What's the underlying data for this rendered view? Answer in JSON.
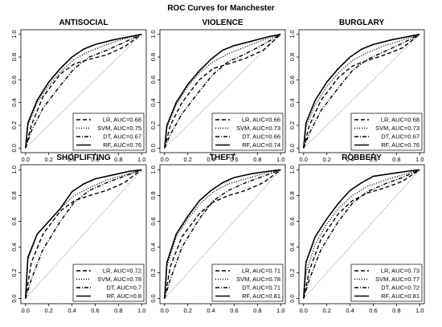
{
  "chart_data": {
    "type": "line",
    "title": "ROC Curves for Manchester",
    "xlim": [
      0,
      1
    ],
    "ylim": [
      0,
      1
    ],
    "x_ticks": [
      "0.0",
      "0.2",
      "0.4",
      "0.6",
      "0.8",
      "1.0"
    ],
    "y_ticks": [
      "0.0",
      "0.2",
      "0.4",
      "0.6",
      "0.8",
      "1.0"
    ],
    "grid": false,
    "reference_line": "dotted diagonal",
    "legend_position": "bottom-right",
    "series_styles": {
      "LR": "dashed",
      "SVM": "dotted",
      "DT": "dash-dot",
      "RF": "solid"
    },
    "panels": [
      {
        "title": "ANTISOCIAL",
        "series": [
          {
            "name": "LR",
            "auc_label": "LR, AUC=0.68",
            "x": [
              0,
              0.05,
              0.15,
              0.3,
              0.42,
              0.55,
              0.7,
              0.85,
              1.0
            ],
            "y": [
              0,
              0.2,
              0.45,
              0.65,
              0.74,
              0.78,
              0.82,
              0.89,
              1.0
            ]
          },
          {
            "name": "SVM",
            "auc_label": "SVM, AUC=0.75",
            "x": [
              0,
              0.02,
              0.1,
              0.2,
              0.3,
              0.42,
              0.55,
              0.7,
              0.85,
              1.0
            ],
            "y": [
              0,
              0.2,
              0.4,
              0.55,
              0.67,
              0.78,
              0.85,
              0.91,
              0.96,
              1.0
            ]
          },
          {
            "name": "DT",
            "auc_label": "DT, AUC=0.67",
            "x": [
              0,
              0.05,
              0.15,
              0.3,
              0.42,
              0.55,
              0.7,
              0.85,
              1.0
            ],
            "y": [
              0,
              0.15,
              0.35,
              0.55,
              0.7,
              0.8,
              0.86,
              0.93,
              1.0
            ]
          },
          {
            "name": "RF",
            "auc_label": "RF, AUC=0.76",
            "x": [
              0,
              0.02,
              0.1,
              0.2,
              0.3,
              0.4,
              0.5,
              0.6,
              0.75,
              0.9,
              1.0
            ],
            "y": [
              0,
              0.22,
              0.42,
              0.58,
              0.7,
              0.8,
              0.87,
              0.91,
              0.95,
              0.98,
              1.0
            ]
          }
        ]
      },
      {
        "title": "VIOLENCE",
        "series": [
          {
            "name": "LR",
            "auc_label": "LR, AUC=0.66",
            "x": [
              0,
              0.05,
              0.15,
              0.3,
              0.42,
              0.55,
              0.7,
              0.85,
              1.0
            ],
            "y": [
              0,
              0.2,
              0.4,
              0.6,
              0.7,
              0.74,
              0.79,
              0.86,
              1.0
            ]
          },
          {
            "name": "SVM",
            "auc_label": "SVM, AUC=0.73",
            "x": [
              0,
              0.02,
              0.1,
              0.2,
              0.3,
              0.42,
              0.55,
              0.7,
              0.85,
              1.0
            ],
            "y": [
              0,
              0.18,
              0.38,
              0.54,
              0.66,
              0.76,
              0.83,
              0.89,
              0.95,
              1.0
            ]
          },
          {
            "name": "DT",
            "auc_label": "DT, AUC=0.66",
            "x": [
              0,
              0.05,
              0.15,
              0.3,
              0.42,
              0.55,
              0.7,
              0.85,
              1.0
            ],
            "y": [
              0,
              0.12,
              0.3,
              0.5,
              0.65,
              0.76,
              0.83,
              0.91,
              1.0
            ]
          },
          {
            "name": "RF",
            "auc_label": "RF, AUC=0.74",
            "x": [
              0,
              0.02,
              0.1,
              0.2,
              0.3,
              0.4,
              0.5,
              0.6,
              0.75,
              0.9,
              1.0
            ],
            "y": [
              0,
              0.2,
              0.4,
              0.56,
              0.68,
              0.78,
              0.86,
              0.9,
              0.94,
              0.98,
              1.0
            ]
          }
        ]
      },
      {
        "title": "BURGLARY",
        "series": [
          {
            "name": "LR",
            "auc_label": "LR, AUC=0.68",
            "x": [
              0,
              0.05,
              0.15,
              0.3,
              0.42,
              0.55,
              0.7,
              0.85,
              1.0
            ],
            "y": [
              0,
              0.2,
              0.42,
              0.62,
              0.72,
              0.77,
              0.82,
              0.88,
              1.0
            ]
          },
          {
            "name": "SVM",
            "auc_label": "SVM, AUC=0.73",
            "x": [
              0,
              0.02,
              0.1,
              0.2,
              0.3,
              0.42,
              0.55,
              0.7,
              0.85,
              1.0
            ],
            "y": [
              0,
              0.18,
              0.38,
              0.54,
              0.66,
              0.77,
              0.84,
              0.9,
              0.95,
              1.0
            ]
          },
          {
            "name": "DT",
            "auc_label": "DT, AUC=0.67",
            "x": [
              0,
              0.05,
              0.15,
              0.3,
              0.42,
              0.55,
              0.7,
              0.85,
              1.0
            ],
            "y": [
              0,
              0.13,
              0.33,
              0.53,
              0.68,
              0.78,
              0.85,
              0.92,
              1.0
            ]
          },
          {
            "name": "RF",
            "auc_label": "RF, AUC=0.76",
            "x": [
              0,
              0.02,
              0.1,
              0.2,
              0.3,
              0.4,
              0.5,
              0.6,
              0.75,
              0.9,
              1.0
            ],
            "y": [
              0,
              0.22,
              0.42,
              0.58,
              0.7,
              0.8,
              0.87,
              0.91,
              0.95,
              0.98,
              1.0
            ]
          }
        ]
      },
      {
        "title": "SHOPLIFTING",
        "series": [
          {
            "name": "LR",
            "auc_label": "LR, AUC=0.72",
            "x": [
              0,
              0.05,
              0.15,
              0.3,
              0.42,
              0.55,
              0.7,
              0.85,
              1.0
            ],
            "y": [
              0,
              0.28,
              0.5,
              0.68,
              0.76,
              0.8,
              0.84,
              0.9,
              1.0
            ]
          },
          {
            "name": "SVM",
            "auc_label": "SVM, AUC=0.78",
            "x": [
              0,
              0.02,
              0.1,
              0.2,
              0.3,
              0.42,
              0.55,
              0.7,
              0.85,
              1.0
            ],
            "y": [
              0,
              0.3,
              0.5,
              0.6,
              0.7,
              0.8,
              0.86,
              0.92,
              0.96,
              1.0
            ]
          },
          {
            "name": "DT",
            "auc_label": "DT, AUC=0.7",
            "x": [
              0,
              0.05,
              0.15,
              0.3,
              0.42,
              0.55,
              0.7,
              0.85,
              1.0
            ],
            "y": [
              0,
              0.15,
              0.38,
              0.6,
              0.75,
              0.84,
              0.9,
              0.95,
              1.0
            ]
          },
          {
            "name": "RF",
            "auc_label": "RF, AUC=0.8",
            "x": [
              0,
              0.02,
              0.1,
              0.2,
              0.3,
              0.4,
              0.5,
              0.6,
              0.75,
              0.9,
              1.0
            ],
            "y": [
              0,
              0.32,
              0.5,
              0.6,
              0.7,
              0.83,
              0.89,
              0.93,
              0.96,
              0.99,
              1.0
            ]
          }
        ]
      },
      {
        "title": "THEFT",
        "series": [
          {
            "name": "LR",
            "auc_label": "LR, AUC=0.71",
            "x": [
              0,
              0.05,
              0.15,
              0.3,
              0.42,
              0.55,
              0.7,
              0.85,
              1.0
            ],
            "y": [
              0,
              0.25,
              0.48,
              0.66,
              0.75,
              0.8,
              0.84,
              0.9,
              1.0
            ]
          },
          {
            "name": "SVM",
            "auc_label": "SVM, AUC=0.78",
            "x": [
              0,
              0.02,
              0.1,
              0.2,
              0.3,
              0.42,
              0.55,
              0.7,
              0.85,
              1.0
            ],
            "y": [
              0,
              0.25,
              0.48,
              0.62,
              0.73,
              0.83,
              0.89,
              0.93,
              0.97,
              1.0
            ]
          },
          {
            "name": "DT",
            "auc_label": "DT, AUC=0.71",
            "x": [
              0,
              0.05,
              0.15,
              0.3,
              0.42,
              0.55,
              0.7,
              0.85,
              1.0
            ],
            "y": [
              0,
              0.15,
              0.4,
              0.62,
              0.76,
              0.84,
              0.9,
              0.95,
              1.0
            ]
          },
          {
            "name": "RF",
            "auc_label": "RF, AUC=0.81",
            "x": [
              0,
              0.02,
              0.1,
              0.2,
              0.3,
              0.4,
              0.5,
              0.6,
              0.75,
              0.9,
              1.0
            ],
            "y": [
              0,
              0.28,
              0.5,
              0.64,
              0.76,
              0.84,
              0.9,
              0.94,
              0.97,
              0.99,
              1.0
            ]
          }
        ]
      },
      {
        "title": "ROBBERY",
        "series": [
          {
            "name": "LR",
            "auc_label": "LR, AUC=0.73",
            "x": [
              0,
              0.05,
              0.15,
              0.3,
              0.42,
              0.55,
              0.7,
              0.85,
              1.0
            ],
            "y": [
              0,
              0.22,
              0.46,
              0.66,
              0.76,
              0.82,
              0.86,
              0.91,
              1.0
            ]
          },
          {
            "name": "SVM",
            "auc_label": "SVM, AUC=0.77",
            "x": [
              0,
              0.02,
              0.1,
              0.2,
              0.3,
              0.42,
              0.55,
              0.7,
              0.85,
              1.0
            ],
            "y": [
              0,
              0.2,
              0.42,
              0.58,
              0.7,
              0.8,
              0.87,
              0.92,
              0.96,
              1.0
            ]
          },
          {
            "name": "DT",
            "auc_label": "DT, AUC=0.72",
            "x": [
              0,
              0.05,
              0.15,
              0.3,
              0.42,
              0.55,
              0.7,
              0.85,
              1.0
            ],
            "y": [
              0,
              0.15,
              0.38,
              0.6,
              0.74,
              0.83,
              0.89,
              0.94,
              1.0
            ]
          },
          {
            "name": "RF",
            "auc_label": "RF, AUC=0.81",
            "x": [
              0,
              0.02,
              0.1,
              0.2,
              0.3,
              0.4,
              0.5,
              0.6,
              0.75,
              0.9,
              1.0
            ],
            "y": [
              0,
              0.28,
              0.48,
              0.62,
              0.74,
              0.84,
              0.9,
              0.95,
              0.97,
              0.99,
              1.0
            ]
          }
        ]
      }
    ]
  }
}
